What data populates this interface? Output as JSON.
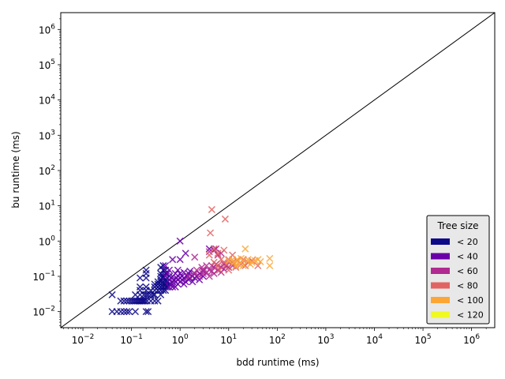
{
  "chart_data": {
    "type": "scatter",
    "xlabel": "bdd runtime (ms)",
    "ylabel": "bu runtime (ms)",
    "xscale": "log",
    "yscale": "log",
    "xlim": [
      0.0035,
      3000000
    ],
    "ylim": [
      0.0035,
      3000000
    ],
    "x_tick_exponents": [
      -2,
      -1,
      0,
      1,
      2,
      3,
      4,
      5,
      6
    ],
    "y_tick_exponents": [
      -2,
      -1,
      0,
      1,
      2,
      3,
      4,
      5,
      6
    ],
    "tick_base": "10",
    "marker": "x",
    "reference_line": "y = x",
    "legend": {
      "title": "Tree size",
      "placement": "lower-right",
      "entries": [
        {
          "label": "< 20",
          "color": "#0d0887"
        },
        {
          "label": "< 40",
          "color": "#6a00a8"
        },
        {
          "label": "< 60",
          "color": "#b12a90"
        },
        {
          "label": "< 80",
          "color": "#e16462"
        },
        {
          "label": "< 100",
          "color": "#fca636"
        },
        {
          "label": "< 120",
          "color": "#f0f921"
        }
      ]
    },
    "series": [
      {
        "name": "< 20",
        "color": "#0d0887",
        "points": [
          [
            0.04,
            0.03
          ],
          [
            0.04,
            0.01
          ],
          [
            0.05,
            0.01
          ],
          [
            0.06,
            0.01
          ],
          [
            0.07,
            0.01
          ],
          [
            0.08,
            0.01
          ],
          [
            0.09,
            0.01
          ],
          [
            0.12,
            0.01
          ],
          [
            0.2,
            0.01
          ],
          [
            0.22,
            0.01
          ],
          [
            0.06,
            0.02
          ],
          [
            0.07,
            0.02
          ],
          [
            0.08,
            0.02
          ],
          [
            0.09,
            0.02
          ],
          [
            0.1,
            0.02
          ],
          [
            0.11,
            0.02
          ],
          [
            0.12,
            0.02
          ],
          [
            0.13,
            0.02
          ],
          [
            0.14,
            0.02
          ],
          [
            0.15,
            0.02
          ],
          [
            0.16,
            0.02
          ],
          [
            0.17,
            0.02
          ],
          [
            0.18,
            0.02
          ],
          [
            0.19,
            0.02
          ],
          [
            0.21,
            0.02
          ],
          [
            0.25,
            0.02
          ],
          [
            0.3,
            0.02
          ],
          [
            0.35,
            0.02
          ],
          [
            0.12,
            0.03
          ],
          [
            0.15,
            0.03
          ],
          [
            0.18,
            0.03
          ],
          [
            0.2,
            0.03
          ],
          [
            0.22,
            0.03
          ],
          [
            0.25,
            0.03
          ],
          [
            0.28,
            0.03
          ],
          [
            0.3,
            0.03
          ],
          [
            0.4,
            0.03
          ],
          [
            0.15,
            0.04
          ],
          [
            0.2,
            0.04
          ],
          [
            0.25,
            0.04
          ],
          [
            0.3,
            0.04
          ],
          [
            0.35,
            0.04
          ],
          [
            0.4,
            0.04
          ],
          [
            0.45,
            0.04
          ],
          [
            0.5,
            0.04
          ],
          [
            0.15,
            0.05
          ],
          [
            0.2,
            0.05
          ],
          [
            0.3,
            0.05
          ],
          [
            0.35,
            0.05
          ],
          [
            0.4,
            0.05
          ],
          [
            0.45,
            0.05
          ],
          [
            0.5,
            0.05
          ],
          [
            0.55,
            0.05
          ],
          [
            0.3,
            0.06
          ],
          [
            0.35,
            0.06
          ],
          [
            0.4,
            0.06
          ],
          [
            0.45,
            0.06
          ],
          [
            0.5,
            0.06
          ],
          [
            0.6,
            0.06
          ],
          [
            0.35,
            0.07
          ],
          [
            0.4,
            0.07
          ],
          [
            0.45,
            0.07
          ],
          [
            0.5,
            0.07
          ],
          [
            0.55,
            0.07
          ],
          [
            0.15,
            0.09
          ],
          [
            0.2,
            0.09
          ],
          [
            0.4,
            0.08
          ],
          [
            0.45,
            0.09
          ],
          [
            0.5,
            0.08
          ],
          [
            0.6,
            0.08
          ],
          [
            0.4,
            0.1
          ],
          [
            0.45,
            0.1
          ],
          [
            0.5,
            0.12
          ],
          [
            0.4,
            0.12
          ],
          [
            0.45,
            0.15
          ],
          [
            0.4,
            0.18
          ],
          [
            0.45,
            0.2
          ],
          [
            0.2,
            0.12
          ],
          [
            0.2,
            0.15
          ],
          [
            0.5,
            0.15
          ],
          [
            0.6,
            0.1
          ]
        ]
      },
      {
        "name": "< 40",
        "color": "#6a00a8",
        "points": [
          [
            1.0,
            1.0
          ],
          [
            1.3,
            0.45
          ],
          [
            1.0,
            0.3
          ],
          [
            0.7,
            0.3
          ],
          [
            0.5,
            0.2
          ],
          [
            0.6,
            0.15
          ],
          [
            0.5,
            0.1
          ],
          [
            0.55,
            0.12
          ],
          [
            0.6,
            0.05
          ],
          [
            0.65,
            0.06
          ],
          [
            0.7,
            0.05
          ],
          [
            0.7,
            0.07
          ],
          [
            0.75,
            0.08
          ],
          [
            0.8,
            0.05
          ],
          [
            0.8,
            0.07
          ],
          [
            0.85,
            0.09
          ],
          [
            0.9,
            0.06
          ],
          [
            0.9,
            0.08
          ],
          [
            1.0,
            0.07
          ],
          [
            1.0,
            0.09
          ],
          [
            1.0,
            0.12
          ],
          [
            1.1,
            0.08
          ],
          [
            1.1,
            0.1
          ],
          [
            1.2,
            0.06
          ],
          [
            1.2,
            0.09
          ],
          [
            1.3,
            0.07
          ],
          [
            1.4,
            0.1
          ],
          [
            1.5,
            0.08
          ],
          [
            1.5,
            0.12
          ],
          [
            1.6,
            0.09
          ],
          [
            1.8,
            0.1
          ],
          [
            1.8,
            0.07
          ],
          [
            2.0,
            0.12
          ],
          [
            2.0,
            0.09
          ],
          [
            2.2,
            0.1
          ],
          [
            2.5,
            0.12
          ],
          [
            2.5,
            0.08
          ],
          [
            3.0,
            0.1
          ],
          [
            3.0,
            0.14
          ],
          [
            0.8,
            0.12
          ],
          [
            0.9,
            0.15
          ],
          [
            0.7,
            0.1
          ],
          [
            1.2,
            0.13
          ],
          [
            1.6,
            0.14
          ],
          [
            4.0,
            0.6
          ],
          [
            5.0,
            0.55
          ],
          [
            0.6,
            0.08
          ]
        ]
      },
      {
        "name": "< 60",
        "color": "#b12a90",
        "points": [
          [
            4.0,
            0.5
          ],
          [
            6.0,
            0.4
          ],
          [
            5.5,
            0.6
          ],
          [
            2.0,
            0.35
          ],
          [
            7.0,
            0.45
          ],
          [
            1.5,
            0.1
          ],
          [
            2.0,
            0.12
          ],
          [
            2.5,
            0.1
          ],
          [
            3.0,
            0.15
          ],
          [
            3.0,
            0.12
          ],
          [
            3.5,
            0.13
          ],
          [
            4.0,
            0.15
          ],
          [
            4.0,
            0.1
          ],
          [
            4.5,
            0.14
          ],
          [
            5.0,
            0.12
          ],
          [
            5.0,
            0.18
          ],
          [
            6.0,
            0.15
          ],
          [
            6.0,
            0.2
          ],
          [
            7.0,
            0.18
          ],
          [
            7.0,
            0.13
          ],
          [
            8.0,
            0.16
          ],
          [
            9.0,
            0.2
          ],
          [
            10.0,
            0.18
          ],
          [
            2.2,
            0.15
          ],
          [
            2.8,
            0.18
          ],
          [
            3.5,
            0.2
          ],
          [
            4.5,
            0.2
          ],
          [
            5.5,
            0.22
          ],
          [
            8.0,
            0.22
          ],
          [
            12.0,
            0.2
          ]
        ]
      },
      {
        "name": "< 80",
        "color": "#e16462",
        "points": [
          [
            4.5,
            7.8
          ],
          [
            8.5,
            4.2
          ],
          [
            4.2,
            1.7
          ],
          [
            5.0,
            0.6
          ],
          [
            8.0,
            0.55
          ],
          [
            6.0,
            0.45
          ],
          [
            12.0,
            0.4
          ],
          [
            4.0,
            0.4
          ],
          [
            5.0,
            0.25
          ],
          [
            6.0,
            0.2
          ],
          [
            7.0,
            0.3
          ],
          [
            8.0,
            0.25
          ],
          [
            9.0,
            0.22
          ],
          [
            10.0,
            0.3
          ],
          [
            12.0,
            0.25
          ],
          [
            15.0,
            0.28
          ],
          [
            18.0,
            0.22
          ],
          [
            20.0,
            0.3
          ],
          [
            25.0,
            0.25
          ],
          [
            30.0,
            0.28
          ],
          [
            40.0,
            0.2
          ],
          [
            6.5,
            0.15
          ],
          [
            10.0,
            0.15
          ],
          [
            14.0,
            0.18
          ],
          [
            22.0,
            0.2
          ]
        ]
      },
      {
        "name": "< 100",
        "color": "#fca636",
        "points": [
          [
            70.0,
            0.32
          ],
          [
            70.0,
            0.2
          ],
          [
            22.0,
            0.6
          ],
          [
            40.0,
            0.3
          ],
          [
            35.0,
            0.28
          ],
          [
            30.0,
            0.25
          ],
          [
            25.0,
            0.3
          ],
          [
            20.0,
            0.28
          ],
          [
            18.0,
            0.32
          ],
          [
            15.0,
            0.3
          ],
          [
            13.0,
            0.25
          ],
          [
            12.0,
            0.3
          ],
          [
            10.0,
            0.28
          ],
          [
            16.0,
            0.22
          ],
          [
            28.0,
            0.22
          ],
          [
            45.0,
            0.26
          ],
          [
            20.0,
            0.2
          ],
          [
            14.0,
            0.2
          ]
        ]
      },
      {
        "name": "< 120",
        "color": "#f0f921",
        "points": []
      }
    ]
  }
}
